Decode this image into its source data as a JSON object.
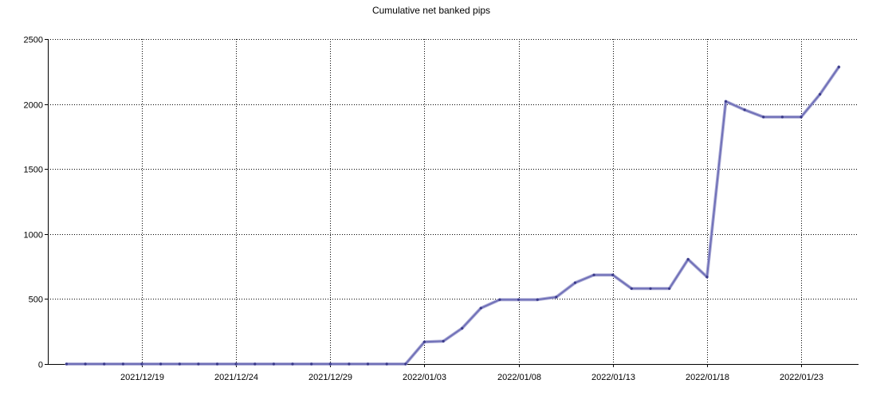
{
  "chart_data": {
    "type": "line",
    "title": "Cumulative net banked pips",
    "xlabel": "",
    "ylabel": "",
    "ylim": [
      0,
      2500
    ],
    "yticks": [
      0,
      500,
      1000,
      1500,
      2000,
      2500
    ],
    "xticks": [
      "2021/12/19",
      "2021/12/24",
      "2021/12/29",
      "2022/01/03",
      "2022/01/08",
      "2022/01/13",
      "2022/01/18",
      "2022/01/23"
    ],
    "grid": true,
    "line_color": "#7070b8",
    "series": [
      {
        "x": [
          "2021/12/15",
          "2021/12/16",
          "2021/12/17",
          "2021/12/18",
          "2021/12/19",
          "2021/12/20",
          "2021/12/21",
          "2021/12/22",
          "2021/12/23",
          "2021/12/24",
          "2021/12/25",
          "2021/12/26",
          "2021/12/27",
          "2021/12/28",
          "2021/12/29",
          "2021/12/30",
          "2021/12/31",
          "2022/01/01",
          "2022/01/02",
          "2022/01/03",
          "2022/01/04",
          "2022/01/05",
          "2022/01/06",
          "2022/01/07",
          "2022/01/08",
          "2022/01/09",
          "2022/01/10",
          "2022/01/11",
          "2022/01/12",
          "2022/01/13",
          "2022/01/14",
          "2022/01/15",
          "2022/01/16",
          "2022/01/17",
          "2022/01/18",
          "2022/01/19",
          "2022/01/20",
          "2022/01/21",
          "2022/01/22",
          "2022/01/23",
          "2022/01/24",
          "2022/01/25"
        ],
        "values": [
          0,
          0,
          0,
          0,
          0,
          0,
          0,
          0,
          0,
          0,
          0,
          0,
          0,
          0,
          0,
          0,
          0,
          0,
          0,
          170,
          175,
          275,
          430,
          495,
          495,
          495,
          515,
          625,
          685,
          685,
          580,
          580,
          580,
          805,
          670,
          2020,
          1955,
          1900,
          1900,
          1900,
          2075,
          2285
        ]
      }
    ]
  }
}
